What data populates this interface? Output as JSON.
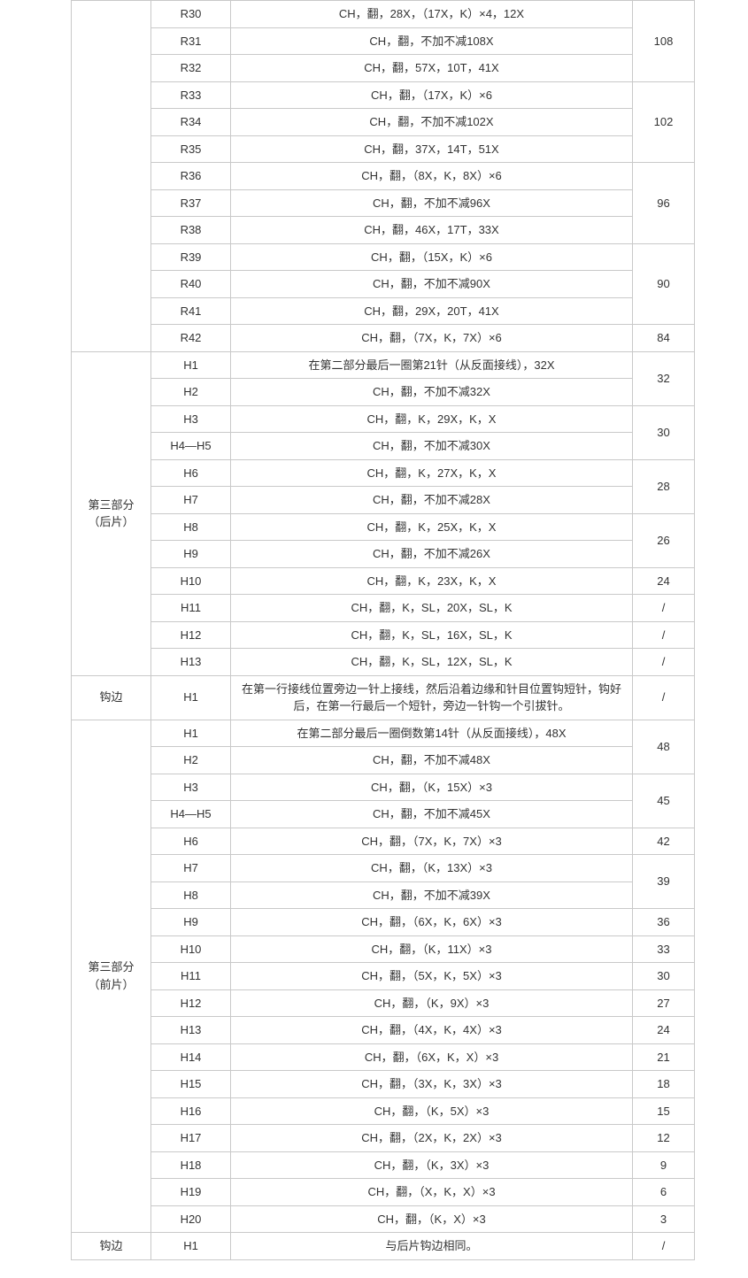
{
  "sections": [
    {
      "label": "",
      "rowspan": 13,
      "rows": [
        {
          "code": "R30",
          "instr": "CH，翻，28X，（17X，K）×4，12X",
          "count": "108",
          "countspan": 2
        },
        {
          "code": "R31",
          "instr": "CH，翻，不加不减108X"
        },
        {
          "code": "R32",
          "instr": "CH，翻，57X，10T，41X",
          "count": "108",
          "countspan": 1,
          "skipcount": false
        },
        {
          "code": "R33",
          "instr": "CH，翻，（17X，K）×6",
          "count": "102",
          "countspan": 3
        },
        {
          "code": "R34",
          "instr": "CH，翻，不加不减102X"
        },
        {
          "code": "R35",
          "instr": "CH，翻，37X，14T，51X"
        },
        {
          "code": "R36",
          "instr": "CH，翻，（8X，K，8X）×6",
          "count": "96",
          "countspan": 3
        },
        {
          "code": "R37",
          "instr": "CH，翻，不加不减96X"
        },
        {
          "code": "R38",
          "instr": "CH，翻，46X，17T，33X"
        },
        {
          "code": "R39",
          "instr": "CH，翻，（15X，K）×6",
          "count": "90",
          "countspan": 3
        },
        {
          "code": "R40",
          "instr": "CH，翻，不加不减90X"
        },
        {
          "code": "R41",
          "instr": "CH，翻，29X，20T，41X"
        },
        {
          "code": "R42",
          "instr": "CH，翻，（7X，K，7X）×6",
          "count": "84",
          "countspan": 1
        }
      ]
    },
    {
      "label": "第三部分\n（后片）",
      "rowspan": 13,
      "rows": [
        {
          "code": "H1",
          "instr": "在第二部分最后一圈第21针（从反面接线），32X",
          "count": "32",
          "countspan": 2
        },
        {
          "code": "H2",
          "instr": "CH，翻，不加不减32X"
        },
        {
          "code": "H3",
          "instr": "CH，翻，K，29X，K，X",
          "count": "30",
          "countspan": 2
        },
        {
          "code": "H4—H5",
          "instr": "CH，翻，不加不减30X"
        },
        {
          "code": "H6",
          "instr": "CH，翻，K，27X，K，X",
          "count": "28",
          "countspan": 2
        },
        {
          "code": "H7",
          "instr": "CH，翻，不加不减28X"
        },
        {
          "code": "H8",
          "instr": "CH，翻，K，25X，K，X",
          "count": "26",
          "countspan": 2
        },
        {
          "code": "H9",
          "instr": "CH，翻，不加不减26X"
        },
        {
          "code": "H10",
          "instr": "CH，翻，K，23X，K，X",
          "count": "24",
          "countspan": 1
        },
        {
          "code": "H11",
          "instr": "CH，翻，K，SL，20X，SL，K",
          "count": "/",
          "countspan": 1
        },
        {
          "code": "H12",
          "instr": "CH，翻，K，SL，16X，SL，K",
          "count": "/",
          "countspan": 1
        },
        {
          "code": "H13",
          "instr": "CH，翻，K，SL，12X，SL，K",
          "count": "/",
          "countspan": 1
        }
      ]
    },
    {
      "label": "钩边",
      "rowspan": 1,
      "rows": [
        {
          "code": "H1",
          "instr": "在第一行接线位置旁边一针上接线，然后沿着边缘和针目位置钩短针，钩好后，在第一行最后一个短针，旁边一针钩一个引拔针。",
          "count": "/",
          "countspan": 1,
          "wrap": true
        }
      ]
    },
    {
      "label": "第三部分\n（前片）",
      "rowspan": 20,
      "rows": [
        {
          "code": "H1",
          "instr": "在第二部分最后一圈倒数第14针（从反面接线），48X",
          "count": "48",
          "countspan": 2
        },
        {
          "code": "H2",
          "instr": "CH，翻，不加不减48X"
        },
        {
          "code": "H3",
          "instr": "CH，翻，（K，15X）×3",
          "count": "45",
          "countspan": 2
        },
        {
          "code": "H4—H5",
          "instr": "CH，翻，不加不减45X"
        },
        {
          "code": "H6",
          "instr": "CH，翻，（7X，K，7X）×3",
          "count": "42",
          "countspan": 1
        },
        {
          "code": "H7",
          "instr": "CH，翻，（K，13X）×3",
          "count": "39",
          "countspan": 2
        },
        {
          "code": "H8",
          "instr": "CH，翻，不加不减39X"
        },
        {
          "code": "H9",
          "instr": "CH，翻，（6X，K，6X）×3",
          "count": "36",
          "countspan": 1
        },
        {
          "code": "H10",
          "instr": "CH，翻，（K，11X）×3",
          "count": "33",
          "countspan": 1
        },
        {
          "code": "H11",
          "instr": "CH，翻，（5X，K，5X）×3",
          "count": "30",
          "countspan": 1
        },
        {
          "code": "H12",
          "instr": "CH，翻，（K，9X）×3",
          "count": "27",
          "countspan": 1
        },
        {
          "code": "H13",
          "instr": "CH，翻，（4X，K，4X）×3",
          "count": "24",
          "countspan": 1
        },
        {
          "code": "H14",
          "instr": "CH，翻，（6X，K，X）×3",
          "count": "21",
          "countspan": 1
        },
        {
          "code": "H15",
          "instr": "CH，翻，（3X，K，3X）×3",
          "count": "18",
          "countspan": 1
        },
        {
          "code": "H16",
          "instr": "CH，翻，（K，5X）×3",
          "count": "15",
          "countspan": 1
        },
        {
          "code": "H17",
          "instr": "CH，翻，（2X，K，2X）×3",
          "count": "12",
          "countspan": 1
        },
        {
          "code": "H18",
          "instr": "CH，翻，（K，3X）×3",
          "count": "9",
          "countspan": 1
        },
        {
          "code": "H19",
          "instr": "CH，翻，（X，K，X）×3",
          "count": "6",
          "countspan": 1
        },
        {
          "code": "H20",
          "instr": "CH，翻，（K，X）×3",
          "count": "3",
          "countspan": 1
        }
      ]
    },
    {
      "label": "钩边",
      "rowspan": 1,
      "rows": [
        {
          "code": "H1",
          "instr": "与后片钩边相同。",
          "count": "/",
          "countspan": 1
        }
      ]
    }
  ]
}
